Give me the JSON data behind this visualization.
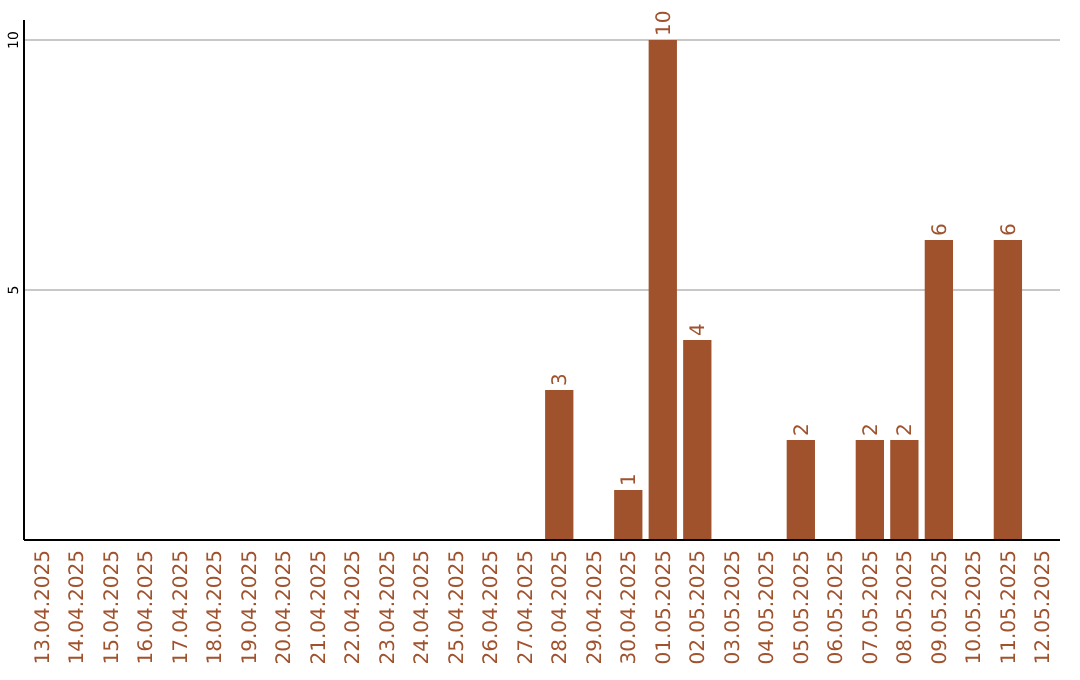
{
  "chart_data": {
    "type": "bar",
    "categories": [
      "13.04.2025",
      "14.04.2025",
      "15.04.2025",
      "16.04.2025",
      "17.04.2025",
      "18.04.2025",
      "19.04.2025",
      "20.04.2025",
      "21.04.2025",
      "22.04.2025",
      "23.04.2025",
      "24.04.2025",
      "25.04.2025",
      "26.04.2025",
      "27.04.2025",
      "28.04.2025",
      "29.04.2025",
      "30.04.2025",
      "01.05.2025",
      "02.05.2025",
      "03.05.2025",
      "04.05.2025",
      "05.05.2025",
      "06.05.2025",
      "07.05.2025",
      "08.05.2025",
      "09.05.2025",
      "10.05.2025",
      "11.05.2025",
      "12.05.2025"
    ],
    "values": [
      null,
      null,
      null,
      null,
      null,
      null,
      null,
      null,
      null,
      null,
      null,
      null,
      null,
      null,
      null,
      3,
      null,
      1,
      10,
      4,
      null,
      null,
      2,
      null,
      2,
      2,
      6,
      null,
      6,
      null
    ],
    "color": "#a0522d",
    "ylim": [
      0,
      10
    ],
    "yticks": [
      5,
      10
    ],
    "grid": "y",
    "data_labels": true
  }
}
